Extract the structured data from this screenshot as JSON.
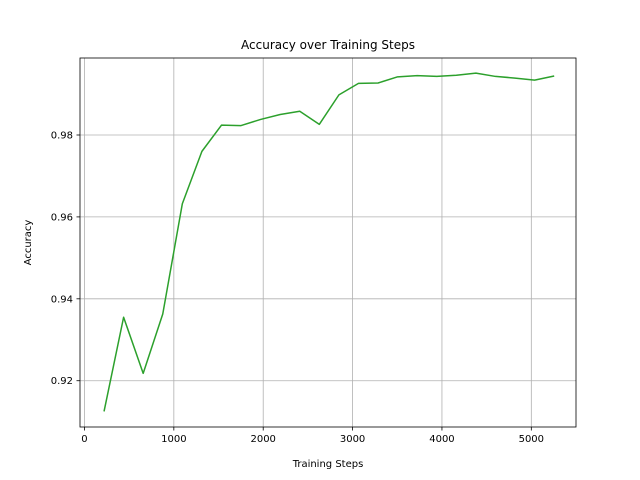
{
  "chart_data": {
    "type": "line",
    "title": "Accuracy over Training Steps",
    "xlabel": "Training Steps",
    "ylabel": "Accuracy",
    "xlim": [
      -50,
      5500
    ],
    "ylim": [
      0.9087,
      0.9988
    ],
    "xticks": [
      0,
      1000,
      2000,
      3000,
      4000,
      5000
    ],
    "xtick_labels": [
      "0",
      "1000",
      "2000",
      "3000",
      "4000",
      "5000"
    ],
    "yticks": [
      0.92,
      0.94,
      0.96,
      0.98
    ],
    "ytick_labels": [
      "0.92",
      "0.94",
      "0.96",
      "0.98"
    ],
    "grid": true,
    "series": [
      {
        "color": "#2ca02c",
        "x": [
          219,
          438,
          657,
          876,
          1095,
          1314,
          1533,
          1752,
          1971,
          2190,
          2409,
          2628,
          2847,
          3066,
          3285,
          3504,
          3723,
          3942,
          4161,
          4380,
          4599,
          4818,
          5037,
          5256
        ],
        "y": [
          0.9125,
          0.9355,
          0.9218,
          0.9363,
          0.9632,
          0.976,
          0.9824,
          0.9823,
          0.9838,
          0.985,
          0.9858,
          0.9826,
          0.9898,
          0.9926,
          0.9927,
          0.9942,
          0.9945,
          0.9943,
          0.9946,
          0.9951,
          0.9943,
          0.9939,
          0.9934,
          0.9944
        ]
      }
    ]
  }
}
